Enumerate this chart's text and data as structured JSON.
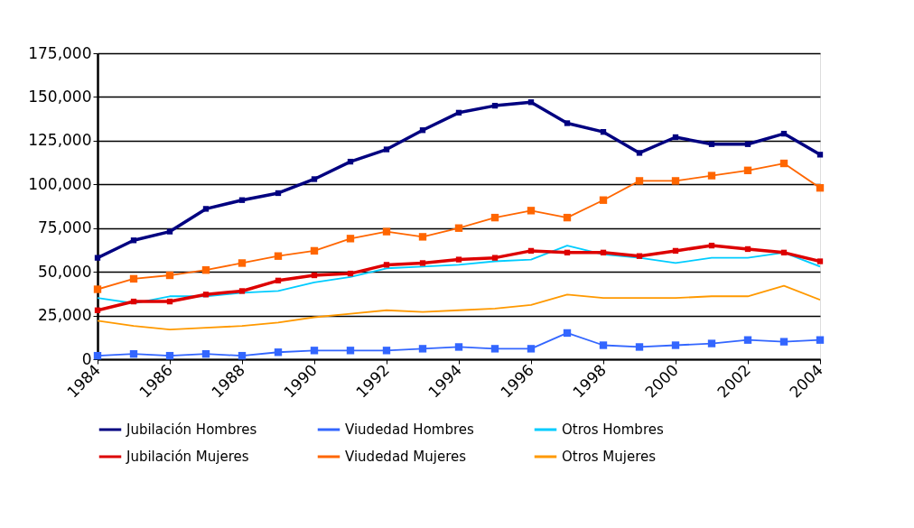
{
  "chart_data": {
    "type": "line",
    "x": [
      1984,
      1985,
      1986,
      1987,
      1988,
      1989,
      1990,
      1991,
      1992,
      1993,
      1994,
      1995,
      1996,
      1997,
      1998,
      1999,
      2000,
      2001,
      2002,
      2003,
      2004
    ],
    "xlim": [
      1984,
      2004
    ],
    "xticks": [
      1984,
      1986,
      1988,
      1990,
      1992,
      1994,
      1996,
      1998,
      2000,
      2002,
      2004
    ],
    "ylim": [
      0,
      175000
    ],
    "yticks": [
      {
        "value": 0,
        "label": "0"
      },
      {
        "value": 25000,
        "label": "25,000"
      },
      {
        "value": 50000,
        "label": "50,000"
      },
      {
        "value": 75000,
        "label": "75,000"
      },
      {
        "value": 100000,
        "label": "100,000"
      },
      {
        "value": 125000,
        "label": "125,000"
      },
      {
        "value": 150000,
        "label": "150,000"
      },
      {
        "value": 175000,
        "label": "175,000"
      }
    ],
    "grid": "y",
    "legend": "bottom",
    "series": [
      {
        "name": "Jubilación Hombres",
        "color": "#000080",
        "marker": "square",
        "values": [
          58000,
          68000,
          73000,
          86000,
          91000,
          95000,
          103000,
          113000,
          120000,
          131000,
          141000,
          145000,
          147000,
          135000,
          130000,
          118000,
          127000,
          123000,
          123000,
          129000,
          117000
        ]
      },
      {
        "name": "Viudedad Hombres",
        "color": "#3366ff",
        "marker": "square",
        "values": [
          2000,
          3000,
          2000,
          3000,
          2000,
          4000,
          5000,
          5000,
          5000,
          6000,
          7000,
          6000,
          6000,
          15000,
          8000,
          7000,
          8000,
          9000,
          11000,
          10000,
          11000
        ]
      },
      {
        "name": "Otros Hombres",
        "color": "#00ccff",
        "marker": "none",
        "values": [
          35000,
          32000,
          36000,
          36000,
          38000,
          39000,
          44000,
          47000,
          52000,
          53000,
          54000,
          56000,
          57000,
          65000,
          60000,
          58000,
          55000,
          58000,
          58000,
          61000,
          53000
        ]
      },
      {
        "name": "Jubilación Mujeres",
        "color": "#dd0000",
        "marker": "square",
        "values": [
          28000,
          33000,
          33000,
          37000,
          39000,
          45000,
          48000,
          49000,
          54000,
          55000,
          57000,
          58000,
          62000,
          61000,
          61000,
          59000,
          62000,
          65000,
          63000,
          61000,
          56000
        ]
      },
      {
        "name": "Viudedad Mujeres",
        "color": "#ff6600",
        "marker": "square",
        "values": [
          40000,
          46000,
          48000,
          51000,
          55000,
          59000,
          62000,
          69000,
          73000,
          70000,
          75000,
          81000,
          85000,
          81000,
          91000,
          102000,
          102000,
          105000,
          108000,
          112000,
          98000
        ]
      },
      {
        "name": "Otros Mujeres",
        "color": "#ff9900",
        "marker": "none",
        "values": [
          22000,
          19000,
          17000,
          18000,
          19000,
          21000,
          24000,
          26000,
          28000,
          27000,
          28000,
          29000,
          31000,
          37000,
          35000,
          35000,
          35000,
          36000,
          36000,
          42000,
          34000
        ]
      }
    ]
  }
}
